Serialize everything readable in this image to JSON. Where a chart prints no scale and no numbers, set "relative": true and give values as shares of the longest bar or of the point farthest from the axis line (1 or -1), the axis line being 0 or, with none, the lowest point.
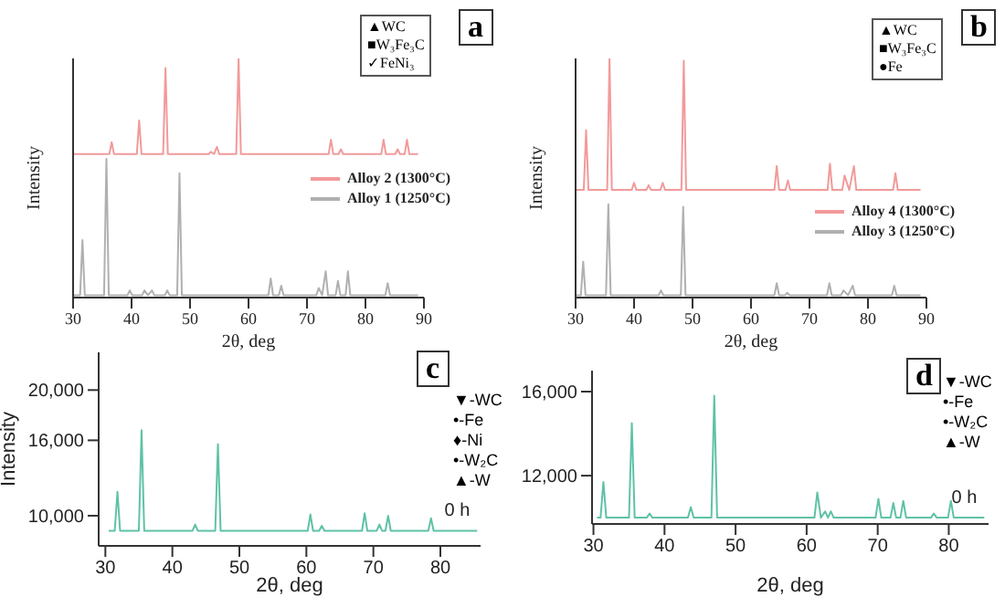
{
  "chart_data": [
    {
      "type": "line",
      "relative": true,
      "xlabel": "2θ, deg",
      "ylabel": "Intensity",
      "xlim": [
        30,
        90
      ],
      "xticks": [
        30,
        40,
        50,
        60,
        70,
        80,
        90
      ],
      "legend": "right",
      "annotations": [
        "a",
        "▲WC",
        "■W₃Fe₃C",
        "✓FeNi₃"
      ],
      "series": [
        {
          "name": "Alloy 2 (1300°C)",
          "color": "#f29a9a",
          "x": [
            30,
            36.2,
            36.6,
            37.0,
            40.9,
            41.3,
            41.7,
            45.4,
            45.8,
            46.2,
            53.2,
            53.6,
            54.1,
            54.6,
            55.0,
            57.9,
            58.3,
            58.7,
            73.7,
            74.1,
            74.5,
            75.4,
            75.8,
            76.2,
            82.7,
            83.1,
            83.5,
            85.1,
            85.5,
            85.9,
            86.7,
            87.1,
            87.5,
            89
          ],
          "values": [
            0.6,
            0.6,
            0.65,
            0.6,
            0.6,
            0.74,
            0.6,
            0.6,
            0.96,
            0.6,
            0.6,
            0.61,
            0.6,
            0.63,
            0.6,
            0.6,
            1,
            0.6,
            0.6,
            0.66,
            0.6,
            0.6,
            0.62,
            0.6,
            0.6,
            0.66,
            0.6,
            0.6,
            0.62,
            0.6,
            0.6,
            0.66,
            0.6,
            0.6
          ]
        },
        {
          "name": "Alloy 1 (1250°C)",
          "color": "#b0b0b0",
          "x": [
            30,
            31.2,
            31.6,
            32.0,
            35.3,
            35.7,
            36.1,
            39.3,
            39.7,
            40.1,
            41.8,
            42.2,
            42.8,
            43.5,
            43.9,
            45.7,
            46.1,
            46.5,
            47.8,
            48.2,
            48.6,
            63.4,
            63.8,
            64.2,
            65.2,
            65.6,
            66.0,
            71.6,
            72.0,
            72.6,
            73.2,
            73.6,
            74.9,
            75.3,
            75.7,
            76.6,
            77.0,
            77.4,
            83.4,
            83.8,
            84.2,
            89
          ],
          "values": [
            0.01,
            0.01,
            0.24,
            0.01,
            0.01,
            0.58,
            0.01,
            0.01,
            0.03,
            0.01,
            0.01,
            0.03,
            0.01,
            0.03,
            0.01,
            0.01,
            0.03,
            0.01,
            0.01,
            0.52,
            0.01,
            0.01,
            0.08,
            0.01,
            0.01,
            0.05,
            0.01,
            0.01,
            0.04,
            0.01,
            0.11,
            0.01,
            0.01,
            0.07,
            0.01,
            0.01,
            0.11,
            0.01,
            0.01,
            0.06,
            0.01,
            0.01
          ]
        }
      ]
    },
    {
      "type": "line",
      "relative": true,
      "xlabel": "2θ, deg",
      "ylabel": "Intensity",
      "xlim": [
        30,
        90
      ],
      "xticks": [
        30,
        40,
        50,
        60,
        70,
        80,
        90
      ],
      "legend": "right",
      "annotations": [
        "b",
        "▲WC",
        "■W₃Fe₃C",
        "●Fe"
      ],
      "series": [
        {
          "name": "Alloy 4 (1300°C)",
          "color": "#f29a9a",
          "x": [
            30,
            31.4,
            31.8,
            32.2,
            35.4,
            35.8,
            36.2,
            39.6,
            40.0,
            40.4,
            42.1,
            42.5,
            42.9,
            44.5,
            44.9,
            45.3,
            48.1,
            48.5,
            48.9,
            64.0,
            64.4,
            64.8,
            65.9,
            66.3,
            66.7,
            73.1,
            73.5,
            73.9,
            75.6,
            76.0,
            76.8,
            77.6,
            78.0,
            84.3,
            84.7,
            85.1,
            89
          ],
          "values": [
            0.45,
            0.45,
            0.7,
            0.45,
            0.45,
            1,
            0.45,
            0.45,
            0.48,
            0.45,
            0.45,
            0.47,
            0.45,
            0.45,
            0.48,
            0.45,
            0.45,
            0.99,
            0.45,
            0.45,
            0.55,
            0.45,
            0.45,
            0.49,
            0.45,
            0.45,
            0.56,
            0.45,
            0.45,
            0.51,
            0.45,
            0.55,
            0.45,
            0.45,
            0.52,
            0.45,
            0.45
          ]
        },
        {
          "name": "Alloy 3 (1250°C)",
          "color": "#b0b0b0",
          "x": [
            30,
            30.9,
            31.3,
            31.7,
            35.2,
            35.6,
            36.0,
            44.2,
            44.6,
            45.0,
            48.0,
            48.4,
            48.8,
            64.0,
            64.4,
            64.8,
            65.8,
            66.2,
            66.6,
            73.0,
            73.4,
            73.8,
            75.4,
            75.8,
            76.6,
            77.4,
            77.8,
            84.1,
            84.5,
            84.9,
            89
          ],
          "values": [
            0.01,
            0.01,
            0.15,
            0.01,
            0.01,
            0.39,
            0.01,
            0.01,
            0.03,
            0.01,
            0.01,
            0.38,
            0.01,
            0.01,
            0.06,
            0.01,
            0.01,
            0.02,
            0.01,
            0.01,
            0.06,
            0.01,
            0.01,
            0.03,
            0.01,
            0.05,
            0.01,
            0.01,
            0.05,
            0.01,
            0.01
          ]
        }
      ]
    },
    {
      "type": "line",
      "xlabel": "2θ, deg",
      "ylabel": "Intensity",
      "xlim": [
        29,
        86
      ],
      "xticks": [
        30,
        40,
        50,
        60,
        70,
        80
      ],
      "ylim": [
        7600,
        23000
      ],
      "yticks": [
        {
          "value": 10000,
          "label": "10,000"
        },
        {
          "value": 16000,
          "label": "16,000"
        },
        {
          "value": 20000,
          "label": "20,000"
        }
      ],
      "annotations": [
        "c",
        "▼-WC",
        "•-Fe",
        "♦-Ni",
        "•-W₂C",
        "▲-W"
      ],
      "series": [
        {
          "name": "0 h",
          "color": "#5fc2a6",
          "x": [
            30.5,
            31.4,
            31.8,
            32.2,
            35.0,
            35.4,
            35.8,
            43.0,
            43.4,
            43.8,
            46.4,
            46.8,
            47.2,
            60.2,
            60.6,
            61.0,
            61.9,
            62.3,
            62.7,
            68.3,
            68.7,
            69.1,
            70.5,
            70.9,
            71.3,
            71.8,
            72.2,
            72.6,
            78.2,
            78.6,
            79.0,
            85.5
          ],
          "values": [
            8800,
            8800,
            11900,
            8800,
            8800,
            16800,
            8800,
            8800,
            9300,
            8800,
            8800,
            15700,
            8800,
            8800,
            10100,
            8800,
            8800,
            9200,
            8800,
            8800,
            10200,
            8800,
            8800,
            9300,
            8800,
            8800,
            10000,
            8800,
            8800,
            9800,
            8800,
            8800
          ]
        }
      ]
    },
    {
      "type": "line",
      "xlabel": "2θ, deg",
      "xlim": [
        29.8,
        85.6
      ],
      "xticks": [
        30,
        40,
        50,
        60,
        70,
        80
      ],
      "ylim": [
        9700,
        17000
      ],
      "yticks": [
        {
          "value": 12000,
          "label": "12,000"
        },
        {
          "value": 16000,
          "label": "16,000"
        }
      ],
      "annotations": [
        "d",
        "▼-WC",
        "•-Fe",
        "•-W₂C",
        "▲-W"
      ],
      "series": [
        {
          "name": "0 h",
          "color": "#5fc2a6",
          "x": [
            30.5,
            31.0,
            31.4,
            31.8,
            35.0,
            35.4,
            35.8,
            37.5,
            37.9,
            38.3,
            43.3,
            43.7,
            44.1,
            46.6,
            47.0,
            47.4,
            61.1,
            61.5,
            62.0,
            62.6,
            63.0,
            63.4,
            63.8,
            69.7,
            70.1,
            70.5,
            71.8,
            72.2,
            72.6,
            73.2,
            73.6,
            74.0,
            77.5,
            77.9,
            78.3,
            79.9,
            80.3,
            80.7,
            85
          ],
          "values": [
            10000,
            10000,
            11700,
            10000,
            10000,
            14500,
            10000,
            10000,
            10200,
            10000,
            10000,
            10500,
            10000,
            10000,
            15800,
            10000,
            10000,
            11200,
            10000,
            10300,
            10000,
            10300,
            10000,
            10000,
            10900,
            10000,
            10000,
            10700,
            10000,
            10000,
            10800,
            10000,
            10000,
            10200,
            10000,
            10000,
            10800,
            10000,
            10000
          ]
        }
      ]
    }
  ]
}
